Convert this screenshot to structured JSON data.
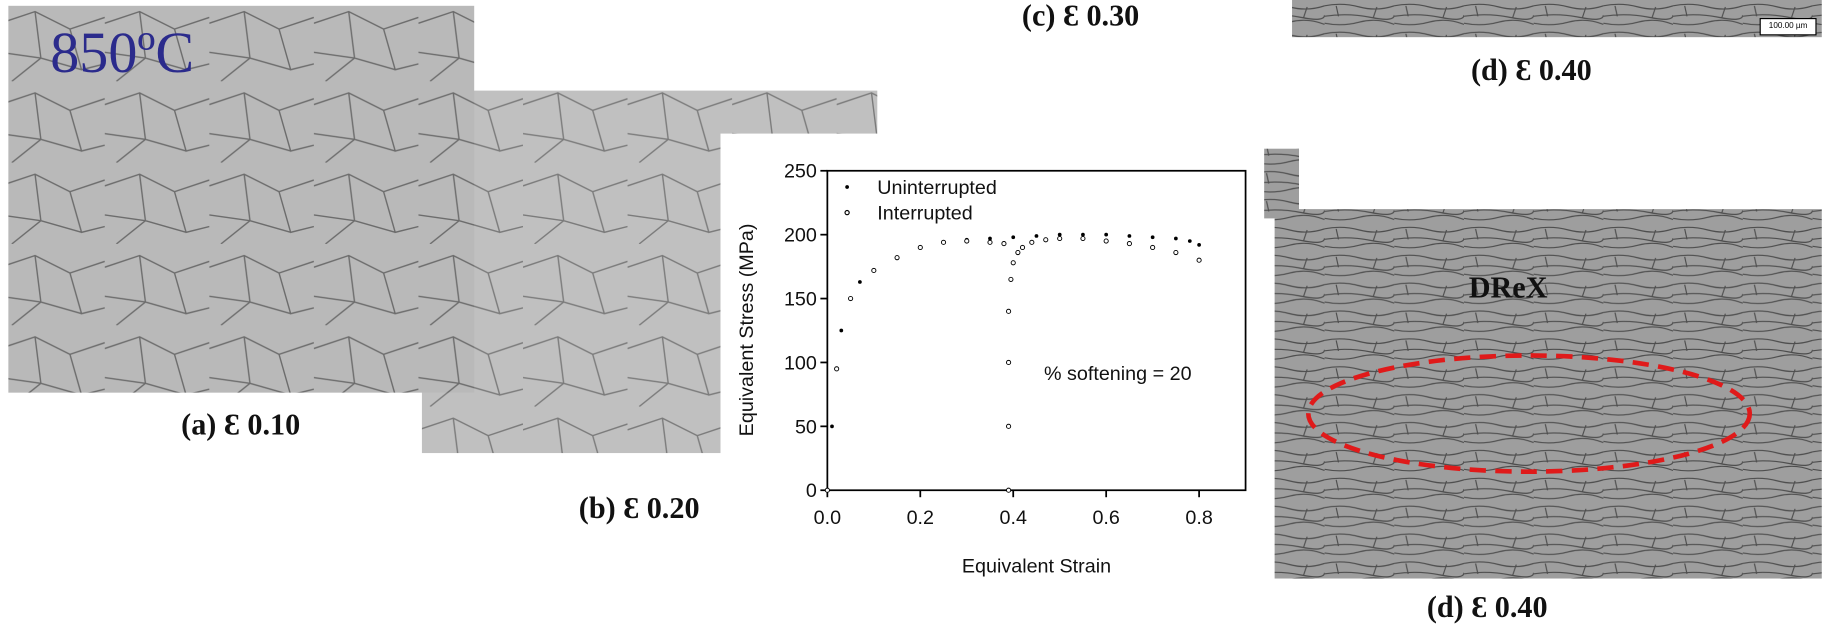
{
  "title_label": "850ºC",
  "captions": {
    "a": "(a) Ɛ 0.10",
    "b": "(b) Ɛ 0.20",
    "c": "(c) Ɛ 0.30",
    "d_top": "(d) Ɛ 0.40",
    "d_bottom": "(d) Ɛ 0.40"
  },
  "scale_bar": "100.00 µm",
  "region_label": "DReX",
  "chart_data": {
    "type": "scatter",
    "x_label": "Equivalent Strain",
    "y_label": "Equivalent Stress (MPa)",
    "annotation": "% softening = 20",
    "xlim": [
      0,
      0.9
    ],
    "ylim": [
      0,
      250
    ],
    "xticks": [
      {
        "value": 0,
        "label": "0.0"
      },
      0.2,
      0.4,
      0.6,
      0.8
    ],
    "yticks": [
      0,
      50,
      100,
      150,
      200,
      250
    ],
    "legend": "top-left",
    "series": [
      {
        "name": "Uninterrupted",
        "color": "#000000",
        "marker": "dot",
        "x": [
          0,
          0.01,
          0.02,
          0.03,
          0.05,
          0.07,
          0.1,
          0.15,
          0.2,
          0.25,
          0.3,
          0.35,
          0.4,
          0.45,
          0.5,
          0.55,
          0.6,
          0.65,
          0.7,
          0.75,
          0.78,
          0.8
        ],
        "values": [
          0,
          50,
          95,
          125,
          150,
          163,
          172,
          182,
          190,
          194,
          196,
          197,
          198,
          199,
          200,
          200,
          200,
          199,
          198,
          197,
          195,
          192
        ]
      },
      {
        "name": "Interrupted",
        "color": "#000000",
        "marker": "circle",
        "x": [
          0,
          0.02,
          0.05,
          0.1,
          0.15,
          0.2,
          0.25,
          0.3,
          0.35,
          0.38,
          0.39,
          0.39,
          0.39,
          0.39,
          0.395,
          0.4,
          0.41,
          0.42,
          0.44,
          0.47,
          0.5,
          0.55,
          0.6,
          0.65,
          0.7,
          0.75,
          0.8
        ],
        "values": [
          0,
          95,
          150,
          172,
          182,
          190,
          194,
          195,
          194,
          193,
          0,
          50,
          100,
          140,
          165,
          178,
          186,
          190,
          194,
          196,
          197,
          197,
          195,
          193,
          190,
          186,
          180
        ]
      }
    ]
  }
}
